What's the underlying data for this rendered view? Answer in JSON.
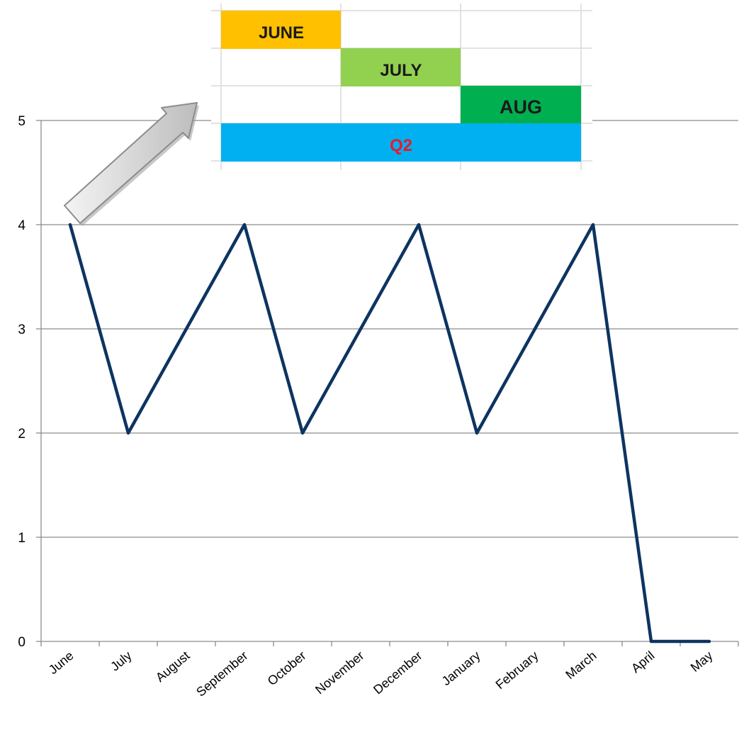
{
  "chart_data": {
    "type": "line",
    "categories": [
      "June",
      "July",
      "August",
      "September",
      "October",
      "November",
      "December",
      "January",
      "February",
      "March",
      "April",
      "May"
    ],
    "series": [
      {
        "values": [
          4,
          2,
          3,
          4,
          2,
          3,
          4,
          2,
          3,
          4,
          0,
          0
        ]
      }
    ],
    "ylim": [
      0,
      5
    ],
    "yticks": [
      "0",
      "1",
      "2",
      "3",
      "4",
      "5"
    ],
    "grid": true,
    "line_color": "#0d3461",
    "annotation": {
      "type": "inset-table",
      "rows": [
        {
          "label": "JUNE",
          "color": "#ffc000"
        },
        {
          "label": "JULY",
          "color": "#92d050"
        },
        {
          "label": "AUG",
          "color": "#00b050"
        },
        {
          "label": "Q2",
          "color": "#00b0f0",
          "text_color": "#e8192c"
        }
      ],
      "arrow": "arrow pointing from June data point toward inset"
    }
  }
}
